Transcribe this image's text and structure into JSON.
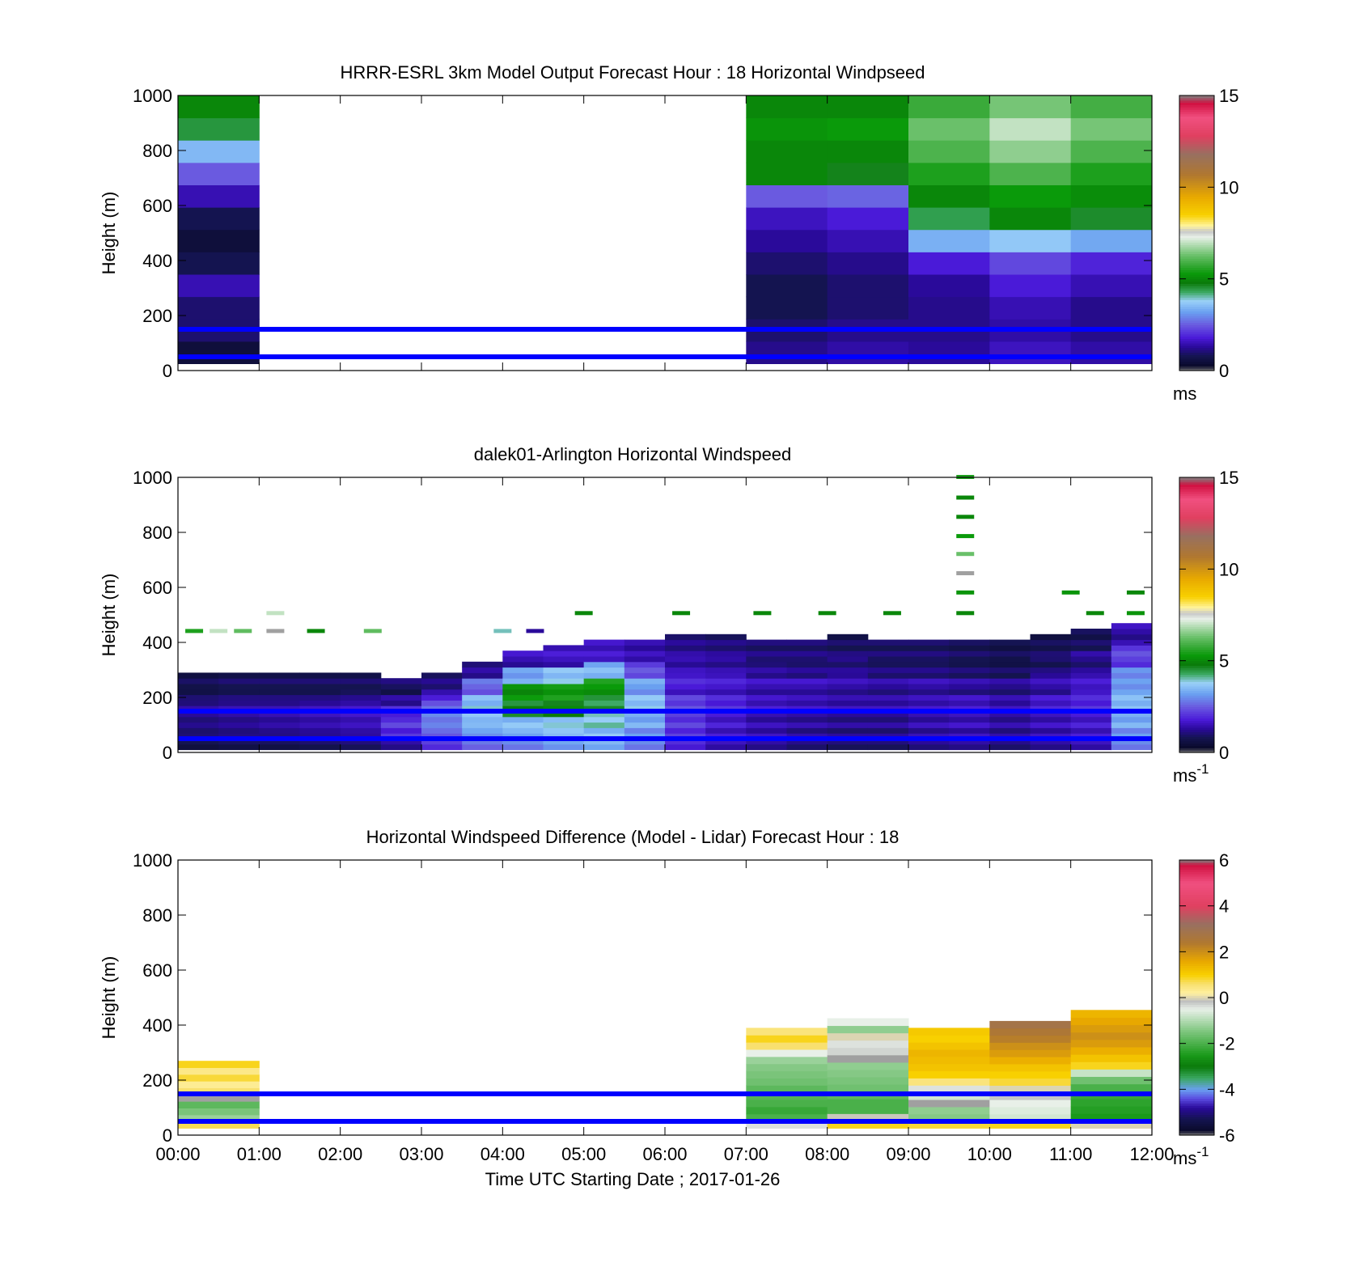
{
  "chart_data": [
    {
      "type": "heatmap",
      "title": "HRRR-ESRL 3km Model Output   Forecast Hour : 18 Horizontal Windpseed",
      "ylabel": "Height (m)",
      "xlabel": "",
      "ylim": [
        0,
        1000
      ],
      "yticks": [
        "0",
        "200",
        "400",
        "600",
        "800",
        "1000"
      ],
      "xlim": [
        0,
        12
      ],
      "xticks": [
        "00:00",
        "01:00",
        "02:00",
        "03:00",
        "04:00",
        "05:00",
        "06:00",
        "07:00",
        "08:00",
        "09:00",
        "10:00",
        "11:00",
        "12:00"
      ],
      "show_xtick_labels": false,
      "colorbar": {
        "min": 0,
        "max": 15,
        "ticks": [
          "0",
          "5",
          "10",
          "15"
        ],
        "unit": "ms",
        "unit_sup": "",
        "palette": "speed"
      },
      "reference_lines": [
        {
          "y": 150
        },
        {
          "y": 50
        }
      ],
      "line_color": "#0000ff",
      "columns": [
        {
          "x0": 0,
          "x1": 1,
          "y0": 25,
          "y1": 1000,
          "values": [
            0.5,
            1.0,
            1.0,
            1.5,
            0.8,
            0.5,
            0.8,
            1.5,
            2.5,
            3.5,
            4.5,
            5.0
          ]
        },
        {
          "x0": 7,
          "x1": 8,
          "y0": 25,
          "y1": 1000,
          "values": [
            1.2,
            1.0,
            0.8,
            0.8,
            1.0,
            1.3,
            1.6,
            2.5,
            5.0,
            5.0,
            5.2,
            5.0
          ]
        },
        {
          "x0": 8,
          "x1": 9,
          "y0": 25,
          "y1": 1000,
          "values": [
            1.4,
            1.2,
            1.0,
            1.0,
            1.2,
            1.5,
            1.8,
            2.6,
            4.7,
            5.0,
            5.3,
            5.0
          ]
        },
        {
          "x0": 9,
          "x1": 10,
          "y0": 25,
          "y1": 1000,
          "values": [
            1.3,
            1.2,
            1.2,
            1.3,
            1.8,
            3.4,
            4.4,
            5.0,
            5.5,
            6.0,
            6.3,
            5.8
          ]
        },
        {
          "x0": 10,
          "x1": 11,
          "y0": 25,
          "y1": 1000,
          "values": [
            1.6,
            1.4,
            1.5,
            1.8,
            2.3,
            3.7,
            5.0,
            5.3,
            6.0,
            6.6,
            7.0,
            6.4
          ]
        },
        {
          "x0": 11,
          "x1": 12,
          "y0": 25,
          "y1": 1000,
          "values": [
            1.4,
            1.2,
            1.2,
            1.5,
            1.9,
            3.3,
            4.6,
            5.1,
            5.5,
            6.0,
            6.4,
            5.9
          ]
        }
      ]
    },
    {
      "type": "heatmap",
      "title": "dalek01-Arlington  Horizontal Windspeed",
      "ylabel": "Height (m)",
      "xlabel": "",
      "ylim": [
        0,
        1000
      ],
      "yticks": [
        "0",
        "200",
        "400",
        "600",
        "800",
        "1000"
      ],
      "xlim": [
        0,
        12
      ],
      "xticks": [
        "00:00",
        "01:00",
        "02:00",
        "03:00",
        "04:00",
        "05:00",
        "06:00",
        "07:00",
        "08:00",
        "09:00",
        "10:00",
        "11:00",
        "12:00"
      ],
      "show_xtick_labels": false,
      "colorbar": {
        "min": 0,
        "max": 15,
        "ticks": [
          "0",
          "5",
          "10",
          "15"
        ],
        "unit": "ms",
        "unit_sup": "-1",
        "palette": "speed"
      },
      "reference_lines": [
        {
          "y": 150
        },
        {
          "y": 50
        }
      ],
      "line_color": "#0000ff",
      "lidar_columns": [
        {
          "x": 0.0,
          "top": 290,
          "low": [
            0.8,
            1.1,
            1.3,
            1.2,
            0.9,
            0.7
          ]
        },
        {
          "x": 0.5,
          "top": 300,
          "low": [
            0.9,
            1.2,
            1.4,
            1.3,
            1.0,
            0.8
          ]
        },
        {
          "x": 1.0,
          "top": 295,
          "low": [
            0.9,
            1.3,
            1.5,
            1.3,
            1.0,
            0.8
          ]
        },
        {
          "x": 1.5,
          "top": 290,
          "low": [
            1.0,
            1.4,
            1.6,
            1.4,
            1.0,
            0.8
          ]
        },
        {
          "x": 2.0,
          "top": 300,
          "low": [
            1.1,
            1.5,
            1.7,
            1.5,
            1.1,
            0.8
          ]
        },
        {
          "x": 2.5,
          "top": 285,
          "low": [
            1.4,
            1.9,
            2.2,
            1.8,
            1.3,
            0.9
          ]
        },
        {
          "x": 3.0,
          "top": 300,
          "low": [
            2.2,
            2.8,
            3.0,
            2.5,
            1.7,
            1.0
          ]
        },
        {
          "x": 3.5,
          "top": 330,
          "low": [
            2.8,
            3.4,
            3.7,
            3.5,
            2.6,
            1.3
          ]
        },
        {
          "x": 4.0,
          "top": 380,
          "low": [
            3.0,
            3.6,
            4.6,
            5.2,
            3.2,
            1.5
          ]
        },
        {
          "x": 4.5,
          "top": 400,
          "low": [
            3.3,
            3.8,
            4.8,
            5.4,
            3.6,
            1.6
          ]
        },
        {
          "x": 5.0,
          "top": 410,
          "low": [
            3.5,
            4.0,
            4.4,
            5.3,
            3.5,
            1.6
          ]
        },
        {
          "x": 5.5,
          "top": 420,
          "low": [
            3.0,
            3.4,
            3.6,
            3.2,
            2.4,
            1.4
          ]
        },
        {
          "x": 6.0,
          "top": 440,
          "low": [
            2.0,
            2.2,
            2.2,
            1.8,
            1.5,
            1.2
          ]
        },
        {
          "x": 6.5,
          "top": 440,
          "low": [
            1.6,
            1.8,
            1.9,
            1.7,
            1.4,
            1.1
          ]
        },
        {
          "x": 7.0,
          "top": 420,
          "low": [
            1.4,
            1.5,
            1.6,
            1.5,
            1.3,
            1.0
          ]
        },
        {
          "x": 7.5,
          "top": 420,
          "low": [
            1.2,
            1.4,
            1.5,
            1.5,
            1.2,
            1.0
          ]
        },
        {
          "x": 8.0,
          "top": 430,
          "low": [
            1.1,
            1.3,
            1.4,
            1.4,
            1.2,
            0.9
          ]
        },
        {
          "x": 8.5,
          "top": 425,
          "low": [
            1.1,
            1.3,
            1.4,
            1.3,
            1.1,
            0.9
          ]
        },
        {
          "x": 9.0,
          "top": 420,
          "low": [
            1.3,
            1.5,
            1.5,
            1.4,
            1.1,
            0.9
          ]
        },
        {
          "x": 9.5,
          "top": 425,
          "low": [
            1.4,
            1.6,
            1.6,
            1.3,
            1.0,
            0.8
          ]
        },
        {
          "x": 10.0,
          "top": 425,
          "low": [
            1.2,
            1.4,
            1.4,
            1.2,
            0.9,
            0.7
          ]
        },
        {
          "x": 10.5,
          "top": 430,
          "low": [
            1.4,
            1.6,
            1.7,
            1.4,
            1.0,
            0.8
          ]
        },
        {
          "x": 11.0,
          "top": 460,
          "low": [
            1.6,
            1.8,
            1.9,
            1.6,
            1.2,
            0.9
          ]
        },
        {
          "x": 11.5,
          "top": 470,
          "low": [
            3.0,
            3.4,
            3.5,
            3.0,
            2.2,
            1.4
          ]
        }
      ],
      "scatter_dashes": [
        {
          "x": 9.7,
          "y": 1000,
          "v": 5.5
        },
        {
          "x": 9.7,
          "y": 925,
          "v": 5.0
        },
        {
          "x": 9.7,
          "y": 855,
          "v": 5.0
        },
        {
          "x": 9.7,
          "y": 785,
          "v": 5.3
        },
        {
          "x": 9.7,
          "y": 720,
          "v": 6.3
        },
        {
          "x": 9.7,
          "y": 650,
          "v": -1
        },
        {
          "x": 9.7,
          "y": 580,
          "v": 5.2
        },
        {
          "x": 9.7,
          "y": 505,
          "v": 5.0
        },
        {
          "x": 11.0,
          "y": 580,
          "v": 5.2
        },
        {
          "x": 11.8,
          "y": 580,
          "v": 5.0
        },
        {
          "x": 5.0,
          "y": 505,
          "v": 5.0
        },
        {
          "x": 6.2,
          "y": 505,
          "v": 5.0
        },
        {
          "x": 7.2,
          "y": 505,
          "v": 5.0
        },
        {
          "x": 8.0,
          "y": 505,
          "v": 5.0
        },
        {
          "x": 8.8,
          "y": 505,
          "v": 5.0
        },
        {
          "x": 11.3,
          "y": 505,
          "v": 5.0
        },
        {
          "x": 11.8,
          "y": 505,
          "v": 5.2
        },
        {
          "x": 1.2,
          "y": 505,
          "v": 7.0
        },
        {
          "x": 0.2,
          "y": 440,
          "v": 5.5
        },
        {
          "x": 0.5,
          "y": 440,
          "v": 7.0
        },
        {
          "x": 0.8,
          "y": 440,
          "v": 6.2
        },
        {
          "x": 1.2,
          "y": 440,
          "v": -1
        },
        {
          "x": 1.7,
          "y": 440,
          "v": 5.0
        },
        {
          "x": 2.4,
          "y": 440,
          "v": 6.2
        },
        {
          "x": 4.0,
          "y": 440,
          "v": 4.0
        },
        {
          "x": 4.4,
          "y": 440,
          "v": 1.3
        }
      ]
    },
    {
      "type": "heatmap",
      "title": "Horizontal Windspeed Difference (Model - Lidar) Forecast Hour : 18",
      "ylabel": "Height (m)",
      "xlabel": "Time UTC  Starting Date ; 2017-01-26",
      "ylim": [
        0,
        1000
      ],
      "yticks": [
        "0",
        "200",
        "400",
        "600",
        "800",
        "1000"
      ],
      "xlim": [
        0,
        12
      ],
      "xticks": [
        "00:00",
        "01:00",
        "02:00",
        "03:00",
        "04:00",
        "05:00",
        "06:00",
        "07:00",
        "08:00",
        "09:00",
        "10:00",
        "11:00",
        "12:00"
      ],
      "show_xtick_labels": true,
      "colorbar": {
        "min": -6,
        "max": 6,
        "ticks": [
          "-6",
          "-4",
          "-2",
          "0",
          "2",
          "4",
          "6"
        ],
        "unit": "ms",
        "unit_sup": "-1",
        "palette": "diff"
      },
      "reference_lines": [
        {
          "y": 150
        },
        {
          "y": 50
        }
      ],
      "line_color": "#0000ff",
      "columns": [
        {
          "x0": 0,
          "x1": 1,
          "y0": 25,
          "y1": 270,
          "values": [
            0.7,
            -1.2,
            -1.5,
            -1.8,
            -1.0,
            0.6,
            0.3,
            0.8,
            0.4,
            0.9
          ]
        },
        {
          "x0": 7,
          "x1": 8,
          "y0": 25,
          "y1": 390,
          "values": [
            -0.4,
            -2.0,
            -2.2,
            -2.0,
            -1.9,
            -1.8,
            -1.6,
            -1.5,
            -1.4,
            -1.2,
            -0.5,
            0.6,
            0.9,
            0.5
          ]
        },
        {
          "x0": 8,
          "x1": 9,
          "y0": 25,
          "y1": 425,
          "values": [
            0.9,
            -0.1,
            -2.0,
            -2.0,
            -1.8,
            -1.6,
            -1.5,
            -1.4,
            -1.3,
            -1.0,
            -0.3,
            -0.4,
            0.0,
            -1.3,
            -0.5
          ]
        },
        {
          "x0": 9,
          "x1": 10,
          "y0": 25,
          "y1": 390,
          "values": [
            0.8,
            -1.4,
            -1.3,
            -1.0,
            -0.7,
            -0.4,
            0.5,
            1.0,
            1.2,
            1.3,
            1.4,
            1.2,
            1.0,
            1.1
          ]
        },
        {
          "x0": 10,
          "x1": 11,
          "y0": 25,
          "y1": 415,
          "values": [
            0.9,
            -0.7,
            -0.6,
            -0.5,
            -0.2,
            0.0,
            0.8,
            1.0,
            1.2,
            1.5,
            1.8,
            2.0,
            2.3,
            2.5,
            2.8
          ]
        },
        {
          "x0": 11,
          "x1": 12,
          "y0": 25,
          "y1": 455,
          "values": [
            0.0,
            -2.5,
            -2.4,
            -2.3,
            -2.2,
            -2.0,
            -1.6,
            -0.8,
            0.9,
            1.2,
            1.5,
            1.8,
            2.0,
            1.8,
            1.6,
            1.4
          ]
        }
      ]
    }
  ]
}
